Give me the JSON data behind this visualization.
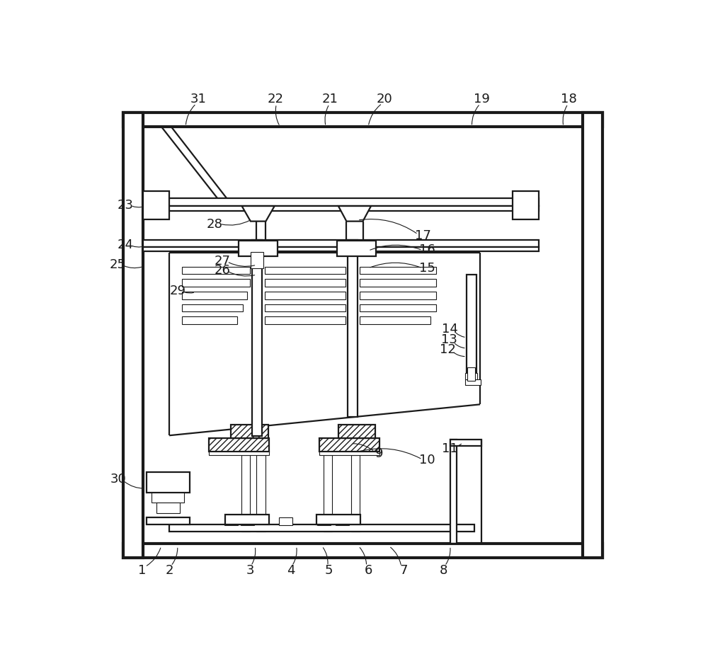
{
  "bg": "#ffffff",
  "lc": "#1a1a1a",
  "lw1": 0.8,
  "lw2": 1.6,
  "lw3": 3.0,
  "figw": 10.0,
  "figh": 9.24,
  "annotations": [
    [
      "31",
      198,
      38,
      175,
      88
    ],
    [
      "22",
      340,
      38,
      348,
      88
    ],
    [
      "21",
      440,
      38,
      432,
      88
    ],
    [
      "20",
      540,
      38,
      510,
      88
    ],
    [
      "19",
      718,
      38,
      700,
      88
    ],
    [
      "18",
      878,
      38,
      868,
      88
    ],
    [
      "23",
      65,
      232,
      97,
      235
    ],
    [
      "24",
      65,
      305,
      97,
      308
    ],
    [
      "25",
      50,
      342,
      97,
      345
    ],
    [
      "28",
      228,
      268,
      297,
      258
    ],
    [
      "17",
      610,
      288,
      490,
      260
    ],
    [
      "16",
      618,
      315,
      510,
      316
    ],
    [
      "27",
      242,
      335,
      305,
      342
    ],
    [
      "26",
      242,
      352,
      305,
      360
    ],
    [
      "15",
      618,
      348,
      510,
      348
    ],
    [
      "29",
      160,
      390,
      193,
      392
    ],
    [
      "14",
      660,
      460,
      690,
      475
    ],
    [
      "13",
      658,
      480,
      690,
      495
    ],
    [
      "12",
      656,
      498,
      690,
      510
    ],
    [
      "11",
      660,
      680,
      683,
      668
    ],
    [
      "10",
      618,
      700,
      490,
      685
    ],
    [
      "9",
      530,
      688,
      478,
      670
    ],
    [
      "30",
      52,
      735,
      102,
      752
    ],
    [
      "8",
      648,
      903,
      660,
      858
    ],
    [
      "7",
      575,
      903,
      548,
      858
    ],
    [
      "6",
      510,
      903,
      492,
      858
    ],
    [
      "5",
      438,
      903,
      425,
      858
    ],
    [
      "4",
      368,
      903,
      378,
      858
    ],
    [
      "3",
      293,
      903,
      302,
      858
    ],
    [
      "2",
      145,
      903,
      160,
      858
    ],
    [
      "1",
      95,
      903,
      130,
      858
    ]
  ]
}
